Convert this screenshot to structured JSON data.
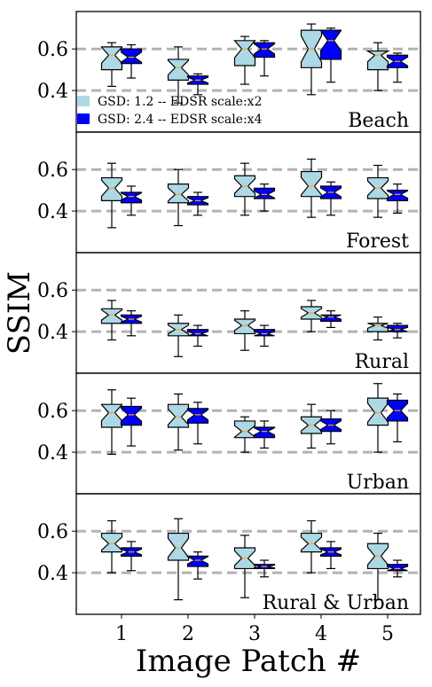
{
  "chart_data": {
    "type": "boxplot",
    "xlabel": "Image Patch #",
    "ylabel": "SSIM",
    "x_ticks": [
      "1",
      "2",
      "3",
      "4",
      "5"
    ],
    "y_ticks": [
      "0.6",
      "0.4"
    ],
    "ylim": [
      0.2,
      0.78
    ],
    "reference_lines": [
      0.6,
      0.4
    ],
    "legend": {
      "placement": "lower-left of first panel",
      "entries": [
        {
          "label": "GSD: 1.2 -- EDSR scale:x2",
          "color": "#add8e6"
        },
        {
          "label": "GSD: 2.4 -- EDSR scale:x4",
          "color": "#0000ff"
        }
      ]
    },
    "series_colors": [
      "#add8e6",
      "#0000ff"
    ],
    "median_color": "#f5a623",
    "panels": [
      {
        "name": "Beach",
        "boxes": [
          [
            {
              "whislo": 0.42,
              "q1": 0.5,
              "med": 0.57,
              "q3": 0.61,
              "whishi": 0.63
            },
            {
              "whislo": 0.46,
              "q1": 0.53,
              "med": 0.56,
              "q3": 0.6,
              "whishi": 0.62
            }
          ],
          [
            {
              "whislo": 0.34,
              "q1": 0.45,
              "med": 0.51,
              "q3": 0.55,
              "whishi": 0.61
            },
            {
              "whislo": 0.38,
              "q1": 0.43,
              "med": 0.45,
              "q3": 0.47,
              "whishi": 0.48
            }
          ],
          [
            {
              "whislo": 0.43,
              "q1": 0.52,
              "med": 0.6,
              "q3": 0.64,
              "whishi": 0.66
            },
            {
              "whislo": 0.47,
              "q1": 0.56,
              "med": 0.6,
              "q3": 0.63,
              "whishi": 0.64
            }
          ],
          [
            {
              "whislo": 0.38,
              "q1": 0.51,
              "med": 0.6,
              "q3": 0.69,
              "whishi": 0.72
            },
            {
              "whislo": 0.44,
              "q1": 0.55,
              "med": 0.64,
              "q3": 0.69,
              "whishi": 0.7
            }
          ],
          [
            {
              "whislo": 0.4,
              "q1": 0.5,
              "med": 0.57,
              "q3": 0.59,
              "whishi": 0.63
            },
            {
              "whislo": 0.44,
              "q1": 0.51,
              "med": 0.54,
              "q3": 0.57,
              "whishi": 0.58
            }
          ]
        ]
      },
      {
        "name": "Forest",
        "boxes": [
          [
            {
              "whislo": 0.32,
              "q1": 0.45,
              "med": 0.51,
              "q3": 0.56,
              "whishi": 0.63
            },
            {
              "whislo": 0.38,
              "q1": 0.44,
              "med": 0.47,
              "q3": 0.49,
              "whishi": 0.52
            }
          ],
          [
            {
              "whislo": 0.33,
              "q1": 0.44,
              "med": 0.48,
              "q3": 0.53,
              "whishi": 0.6
            },
            {
              "whislo": 0.38,
              "q1": 0.43,
              "med": 0.45,
              "q3": 0.47,
              "whishi": 0.49
            }
          ],
          [
            {
              "whislo": 0.38,
              "q1": 0.47,
              "med": 0.52,
              "q3": 0.57,
              "whishi": 0.63
            },
            {
              "whislo": 0.4,
              "q1": 0.46,
              "med": 0.48,
              "q3": 0.51,
              "whishi": 0.53
            }
          ],
          [
            {
              "whislo": 0.37,
              "q1": 0.47,
              "med": 0.52,
              "q3": 0.59,
              "whishi": 0.65
            },
            {
              "whislo": 0.38,
              "q1": 0.46,
              "med": 0.49,
              "q3": 0.52,
              "whishi": 0.54
            }
          ],
          [
            {
              "whislo": 0.37,
              "q1": 0.46,
              "med": 0.51,
              "q3": 0.56,
              "whishi": 0.62
            },
            {
              "whislo": 0.39,
              "q1": 0.45,
              "med": 0.48,
              "q3": 0.5,
              "whishi": 0.53
            }
          ]
        ]
      },
      {
        "name": "Rural",
        "boxes": [
          [
            {
              "whislo": 0.36,
              "q1": 0.44,
              "med": 0.48,
              "q3": 0.51,
              "whishi": 0.55
            },
            {
              "whislo": 0.38,
              "q1": 0.44,
              "med": 0.46,
              "q3": 0.48,
              "whishi": 0.5
            }
          ],
          [
            {
              "whislo": 0.28,
              "q1": 0.38,
              "med": 0.41,
              "q3": 0.44,
              "whishi": 0.48
            },
            {
              "whislo": 0.33,
              "q1": 0.38,
              "med": 0.39,
              "q3": 0.41,
              "whishi": 0.43
            }
          ],
          [
            {
              "whislo": 0.31,
              "q1": 0.39,
              "med": 0.43,
              "q3": 0.46,
              "whishi": 0.5
            },
            {
              "whislo": 0.33,
              "q1": 0.38,
              "med": 0.39,
              "q3": 0.41,
              "whishi": 0.43
            }
          ],
          [
            {
              "whislo": 0.4,
              "q1": 0.46,
              "med": 0.49,
              "q3": 0.52,
              "whishi": 0.55
            },
            {
              "whislo": 0.42,
              "q1": 0.45,
              "med": 0.47,
              "q3": 0.48,
              "whishi": 0.5
            }
          ],
          [
            {
              "whislo": 0.36,
              "q1": 0.4,
              "med": 0.43,
              "q3": 0.44,
              "whishi": 0.47
            },
            {
              "whislo": 0.37,
              "q1": 0.4,
              "med": 0.41,
              "q3": 0.43,
              "whishi": 0.44
            }
          ]
        ]
      },
      {
        "name": "Urban",
        "boxes": [
          [
            {
              "whislo": 0.39,
              "q1": 0.52,
              "med": 0.59,
              "q3": 0.63,
              "whishi": 0.7
            },
            {
              "whislo": 0.43,
              "q1": 0.53,
              "med": 0.58,
              "q3": 0.62,
              "whishi": 0.66
            }
          ],
          [
            {
              "whislo": 0.41,
              "q1": 0.52,
              "med": 0.57,
              "q3": 0.63,
              "whishi": 0.68
            },
            {
              "whislo": 0.44,
              "q1": 0.54,
              "med": 0.58,
              "q3": 0.61,
              "whishi": 0.64
            }
          ],
          [
            {
              "whislo": 0.4,
              "q1": 0.47,
              "med": 0.5,
              "q3": 0.55,
              "whishi": 0.57
            },
            {
              "whislo": 0.42,
              "q1": 0.47,
              "med": 0.5,
              "q3": 0.52,
              "whishi": 0.55
            }
          ],
          [
            {
              "whislo": 0.42,
              "q1": 0.49,
              "med": 0.53,
              "q3": 0.57,
              "whishi": 0.63
            },
            {
              "whislo": 0.44,
              "q1": 0.5,
              "med": 0.53,
              "q3": 0.56,
              "whishi": 0.6
            }
          ],
          [
            {
              "whislo": 0.4,
              "q1": 0.53,
              "med": 0.59,
              "q3": 0.66,
              "whishi": 0.73
            },
            {
              "whislo": 0.45,
              "q1": 0.55,
              "med": 0.6,
              "q3": 0.65,
              "whishi": 0.68
            }
          ]
        ]
      },
      {
        "name": "Rural & Urban",
        "boxes": [
          [
            {
              "whislo": 0.4,
              "q1": 0.5,
              "med": 0.54,
              "q3": 0.59,
              "whishi": 0.65
            },
            {
              "whislo": 0.41,
              "q1": 0.48,
              "med": 0.5,
              "q3": 0.52,
              "whishi": 0.55
            }
          ],
          [
            {
              "whislo": 0.27,
              "q1": 0.46,
              "med": 0.52,
              "q3": 0.59,
              "whishi": 0.66
            },
            {
              "whislo": 0.37,
              "q1": 0.43,
              "med": 0.46,
              "q3": 0.48,
              "whishi": 0.5
            }
          ],
          [
            {
              "whislo": 0.28,
              "q1": 0.42,
              "med": 0.47,
              "q3": 0.52,
              "whishi": 0.58
            },
            {
              "whislo": 0.38,
              "q1": 0.42,
              "med": 0.43,
              "q3": 0.44,
              "whishi": 0.46
            }
          ],
          [
            {
              "whislo": 0.4,
              "q1": 0.5,
              "med": 0.54,
              "q3": 0.59,
              "whishi": 0.65
            },
            {
              "whislo": 0.42,
              "q1": 0.48,
              "med": 0.5,
              "q3": 0.52,
              "whishi": 0.55
            }
          ],
          [
            {
              "whislo": 0.27,
              "q1": 0.42,
              "med": 0.48,
              "q3": 0.54,
              "whishi": 0.59
            },
            {
              "whislo": 0.38,
              "q1": 0.41,
              "med": 0.42,
              "q3": 0.44,
              "whishi": 0.46
            }
          ]
        ]
      }
    ]
  }
}
